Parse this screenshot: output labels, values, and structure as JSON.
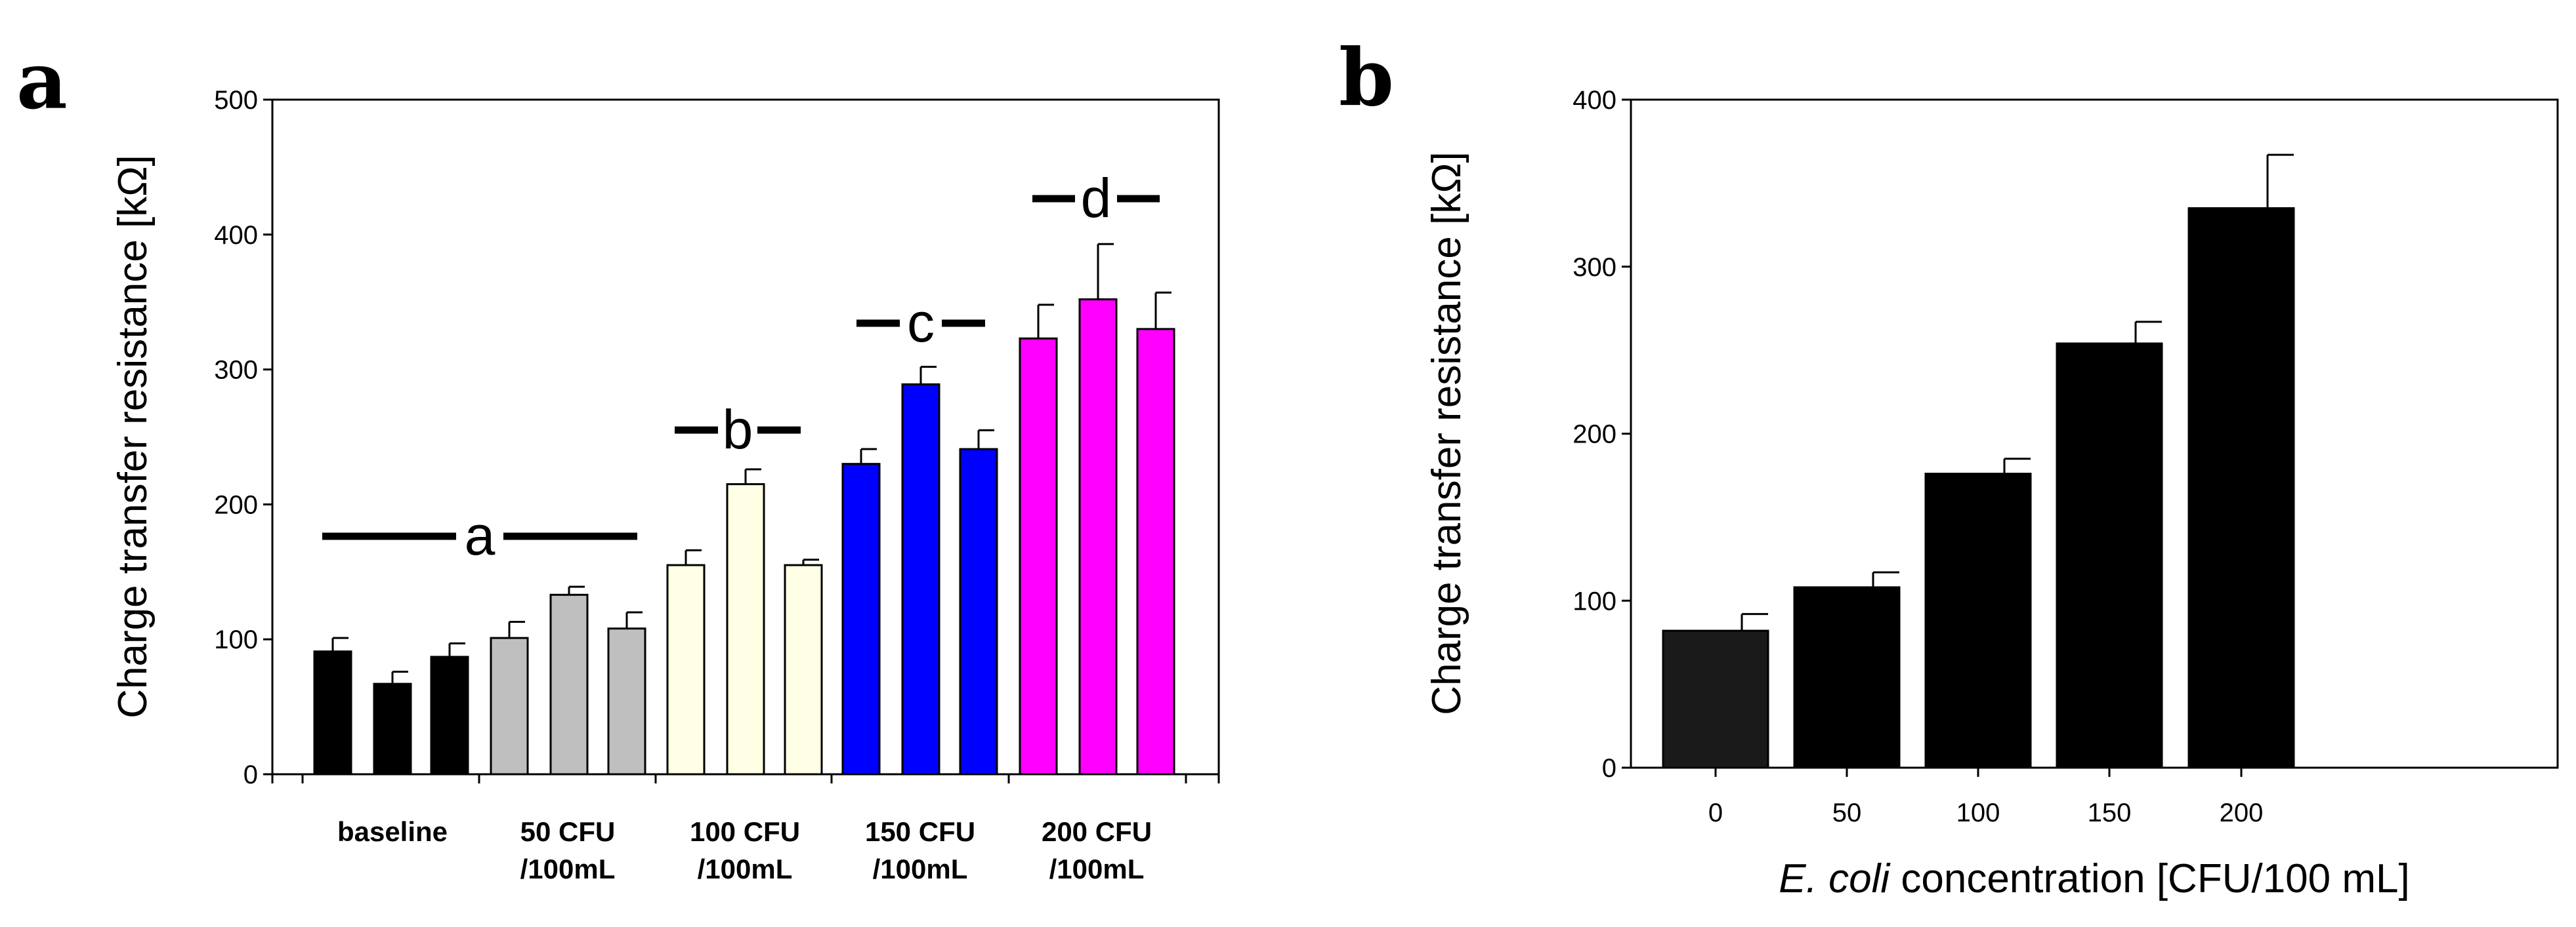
{
  "figure": {
    "panels": [
      "a",
      "b"
    ]
  },
  "chart_data": [
    {
      "panel": "a",
      "type": "bar",
      "title": "",
      "xlabel": "",
      "ylabel": "Charge transfer resistance [kΩ]",
      "ylim": [
        0,
        500
      ],
      "yticks": [
        0,
        100,
        200,
        300,
        400,
        500
      ],
      "grid": false,
      "groups": [
        {
          "label": [
            "baseline"
          ],
          "color": "#000000",
          "values": [
            91,
            67,
            87
          ],
          "errors": [
            10,
            9,
            10
          ],
          "significance": "a"
        },
        {
          "label": [
            "50 CFU",
            "/100mL"
          ],
          "color": "#bfbfbf",
          "values": [
            101,
            133,
            108
          ],
          "errors": [
            12,
            6,
            12
          ],
          "significance": "a"
        },
        {
          "label": [
            "100 CFU",
            "/100mL"
          ],
          "color": "#ffffe6",
          "values": [
            155,
            215,
            155
          ],
          "errors": [
            11,
            11,
            4
          ],
          "significance": "b"
        },
        {
          "label": [
            "150 CFU",
            "/100mL"
          ],
          "color": "#0000ff",
          "values": [
            230,
            289,
            241
          ],
          "errors": [
            11,
            13,
            14
          ],
          "significance": "c"
        },
        {
          "label": [
            "200 CFU",
            "/100mL"
          ],
          "color": "#ff00ff",
          "values": [
            323,
            352,
            330
          ],
          "errors": [
            25,
            41,
            27
          ],
          "significance": "d"
        }
      ],
      "significance_letters": [
        "a",
        "b",
        "c",
        "d"
      ]
    },
    {
      "panel": "b",
      "type": "bar",
      "title": "",
      "xlabel": "E. coli concentration [CFU/100 mL]",
      "xlabel_italic": "E. coli",
      "xlabel_rest": " concentration [CFU/100 mL]",
      "ylabel": "Charge transfer resistance [kΩ]",
      "ylim": [
        0,
        400
      ],
      "yticks": [
        0,
        100,
        200,
        300,
        400
      ],
      "grid": false,
      "categories": [
        "0",
        "50",
        "100",
        "150",
        "200"
      ],
      "values": [
        82,
        108,
        176,
        254,
        335
      ],
      "errors": [
        10,
        9,
        9,
        13,
        32
      ],
      "color": "#000000"
    }
  ]
}
